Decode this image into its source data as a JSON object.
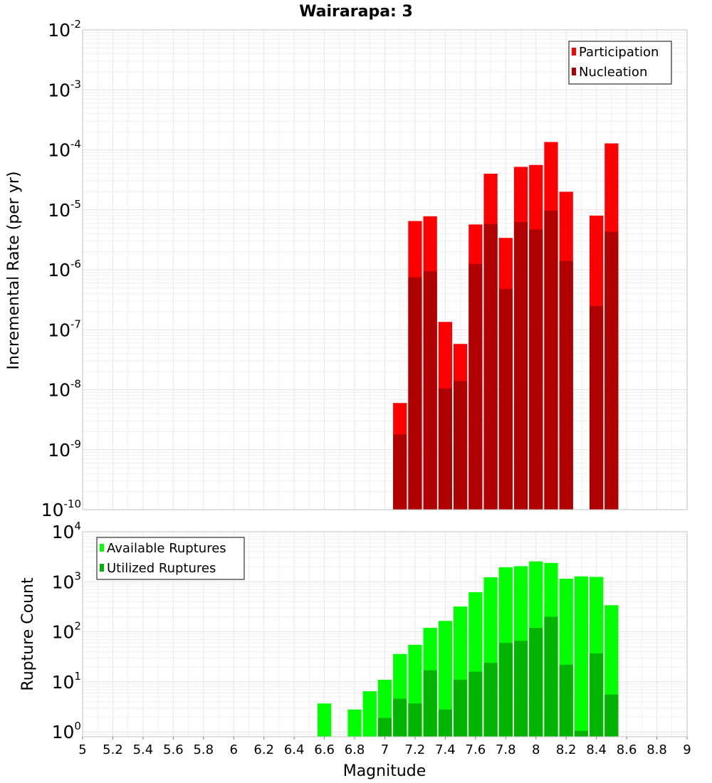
{
  "chart_data": [
    {
      "type": "bar",
      "title": "Wairarapa: 3",
      "xlabel": "",
      "ylabel": "Incremental Rate (per yr)",
      "yscale": "log",
      "ylim": [
        1e-10,
        0.01
      ],
      "y_tick_labels": [
        {
          "base": "10",
          "exp": "-10"
        },
        {
          "base": "10",
          "exp": "-9"
        },
        {
          "base": "10",
          "exp": "-8"
        },
        {
          "base": "10",
          "exp": "-7"
        },
        {
          "base": "10",
          "exp": "-6"
        },
        {
          "base": "10",
          "exp": "-5"
        },
        {
          "base": "10",
          "exp": "-4"
        },
        {
          "base": "10",
          "exp": "-3"
        },
        {
          "base": "10",
          "exp": "-2"
        }
      ],
      "grid": true,
      "legend_position": "top-right",
      "x": [
        7.1,
        7.2,
        7.3,
        7.4,
        7.5,
        7.6,
        7.7,
        7.8,
        7.9,
        8.0,
        8.1,
        8.2,
        8.3,
        8.4,
        8.5
      ],
      "series": [
        {
          "name": "Participation",
          "color": "#ff0000",
          "values": [
            6e-09,
            6.5e-06,
            7.8e-06,
            1.35e-07,
            5.8e-08,
            5.7e-06,
            4e-05,
            3.4e-06,
            5.2e-05,
            5.6e-05,
            0.000135,
            2e-05,
            null,
            8e-06,
            0.000128
          ]
        },
        {
          "name": "Nucleation",
          "color": "#b00000",
          "values": [
            1.8e-09,
            7.5e-07,
            9.5e-07,
            1.05e-08,
            1.4e-08,
            1.25e-06,
            5.8e-06,
            4.8e-07,
            6.2e-06,
            4.7e-06,
            9.7e-06,
            1.4e-06,
            null,
            2.5e-07,
            4.3e-06
          ]
        }
      ]
    },
    {
      "type": "bar",
      "title": "",
      "xlabel": "Magnitude",
      "ylabel": "Rupture Count",
      "yscale": "log",
      "ylim": [
        0.8,
        10000
      ],
      "xlim": [
        5,
        9
      ],
      "x_ticks": [
        "5",
        "5.2",
        "5.4",
        "5.6",
        "5.8",
        "6",
        "6.2",
        "6.4",
        "6.6",
        "6.8",
        "7",
        "7.2",
        "7.4",
        "7.6",
        "7.8",
        "8",
        "8.2",
        "8.4",
        "8.6",
        "8.8",
        "9"
      ],
      "y_tick_labels": [
        {
          "base": "10",
          "exp": "0"
        },
        {
          "base": "10",
          "exp": "1"
        },
        {
          "base": "10",
          "exp": "2"
        },
        {
          "base": "10",
          "exp": "3"
        },
        {
          "base": "10",
          "exp": "4"
        }
      ],
      "grid": true,
      "legend_position": "top-left",
      "x": [
        6.6,
        6.7,
        6.8,
        6.9,
        7.0,
        7.1,
        7.2,
        7.3,
        7.4,
        7.5,
        7.6,
        7.7,
        7.8,
        7.9,
        8.0,
        8.1,
        8.2,
        8.3,
        8.4,
        8.5
      ],
      "series": [
        {
          "name": "Available Ruptures",
          "color": "#00ff00",
          "values": [
            3.7,
            null,
            2.8,
            6.5,
            11,
            36,
            55,
            120,
            165,
            320,
            620,
            1230,
            1950,
            2050,
            2550,
            2380,
            1150,
            1280,
            1250,
            340
          ]
        },
        {
          "name": "Utilized Ruptures",
          "color": "#00b400",
          "values": [
            null,
            null,
            null,
            null,
            1.9,
            4.6,
            3.7,
            17,
            2.8,
            11,
            16,
            24,
            60,
            66,
            120,
            200,
            22,
            1.05,
            37,
            5.6
          ]
        }
      ]
    }
  ]
}
